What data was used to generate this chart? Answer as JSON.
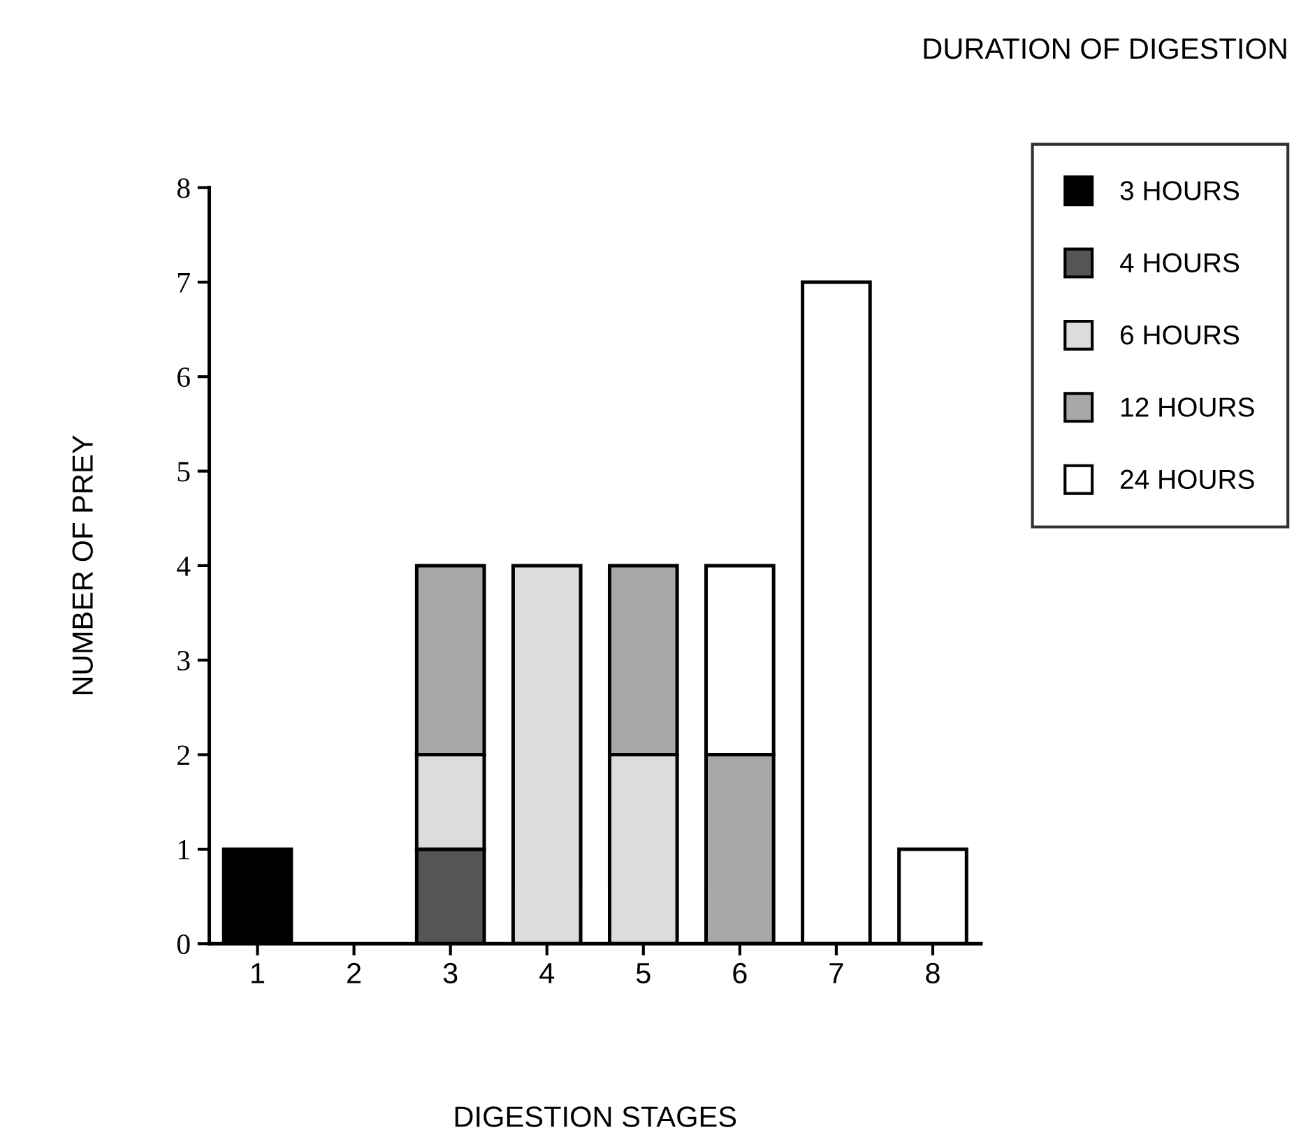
{
  "chart_data": {
    "type": "bar",
    "stacked": true,
    "xlabel": "DIGESTION STAGES",
    "ylabel": "NUMBER OF PREY",
    "legend_title": "DURATION OF DIGESTION",
    "categories": [
      "1",
      "2",
      "3",
      "4",
      "5",
      "6",
      "7",
      "8"
    ],
    "series": [
      {
        "name": "3 HOURS",
        "color": "#000000",
        "values": [
          1,
          null,
          null,
          null,
          null,
          null,
          null,
          null
        ]
      },
      {
        "name": "4 HOURS",
        "color": "#555555",
        "values": [
          null,
          null,
          1,
          null,
          null,
          null,
          null,
          null
        ]
      },
      {
        "name": "6 HOURS",
        "color": "#dcdcdc",
        "values": [
          null,
          null,
          1,
          4,
          2,
          null,
          null,
          null
        ]
      },
      {
        "name": "12 HOURS",
        "color": "#a8a8a8",
        "values": [
          null,
          null,
          2,
          null,
          2,
          2,
          null,
          null
        ]
      },
      {
        "name": "24 HOURS",
        "color": "#ffffff",
        "values": [
          null,
          null,
          null,
          null,
          null,
          2,
          7,
          1
        ]
      }
    ],
    "ylim": [
      0,
      8
    ],
    "yticks": [
      0,
      1,
      2,
      3,
      4,
      5,
      6,
      7,
      8
    ],
    "grid": false,
    "legend": "top right"
  }
}
